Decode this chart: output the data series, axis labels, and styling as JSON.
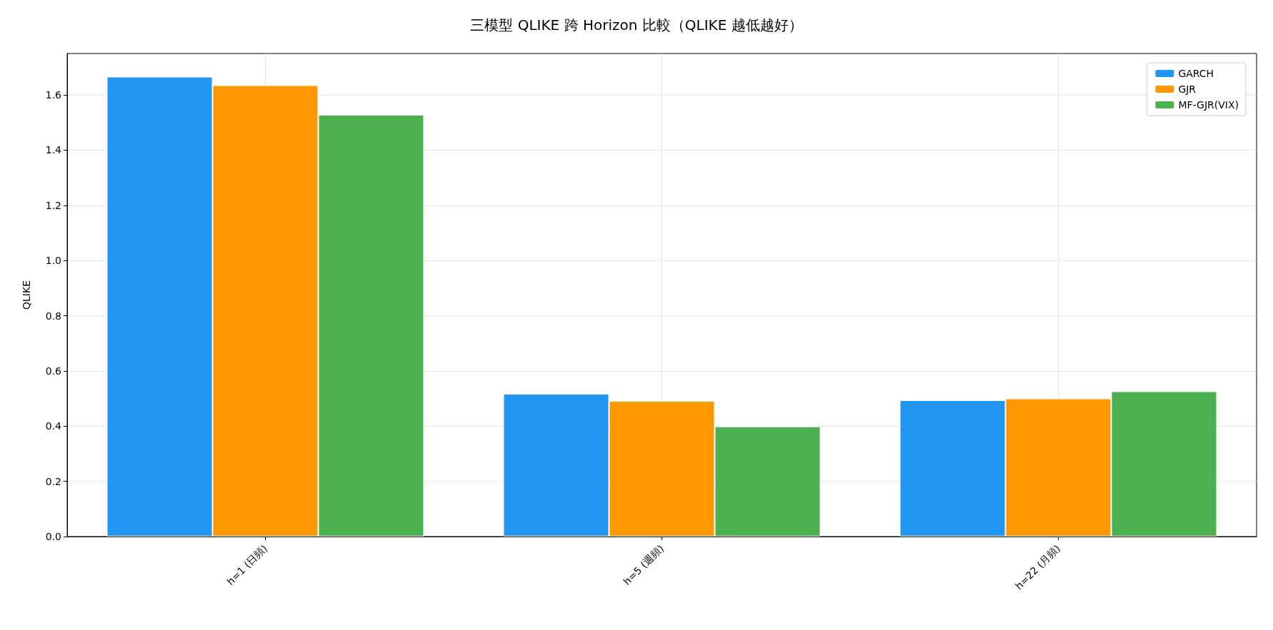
{
  "chart_data": {
    "type": "bar",
    "title": "三模型 QLIKE 跨 Horizon 比較（QLIKE 越低越好）",
    "ylabel": "QLIKE",
    "categories": [
      "h=1 (日頻)",
      "h=5 (週頻)",
      "h=22 (月頻)"
    ],
    "series": [
      {
        "name": "GARCH",
        "color": "#2196f3",
        "values": [
          1.666,
          0.517,
          0.494
        ]
      },
      {
        "name": "GJR",
        "color": "#ff9800",
        "values": [
          1.635,
          0.491,
          0.5
        ]
      },
      {
        "name": "MF-GJR(VIX)",
        "color": "#4caf50",
        "values": [
          1.528,
          0.399,
          0.526
        ]
      }
    ],
    "ylim": [
      0,
      1.75
    ],
    "yticks": [
      {
        "value": 0,
        "label": "0.0"
      },
      {
        "value": 0.2,
        "label": "0.2"
      },
      {
        "value": 0.4,
        "label": "0.4"
      },
      {
        "value": 0.6,
        "label": "0.6"
      },
      {
        "value": 0.8,
        "label": "0.8"
      },
      {
        "value": 1,
        "label": "1.0"
      },
      {
        "value": 1.2,
        "label": "1.2"
      },
      {
        "value": 1.4,
        "label": "1.4"
      },
      {
        "value": 1.6,
        "label": "1.6"
      }
    ],
    "grid": true,
    "legend": "top right"
  }
}
